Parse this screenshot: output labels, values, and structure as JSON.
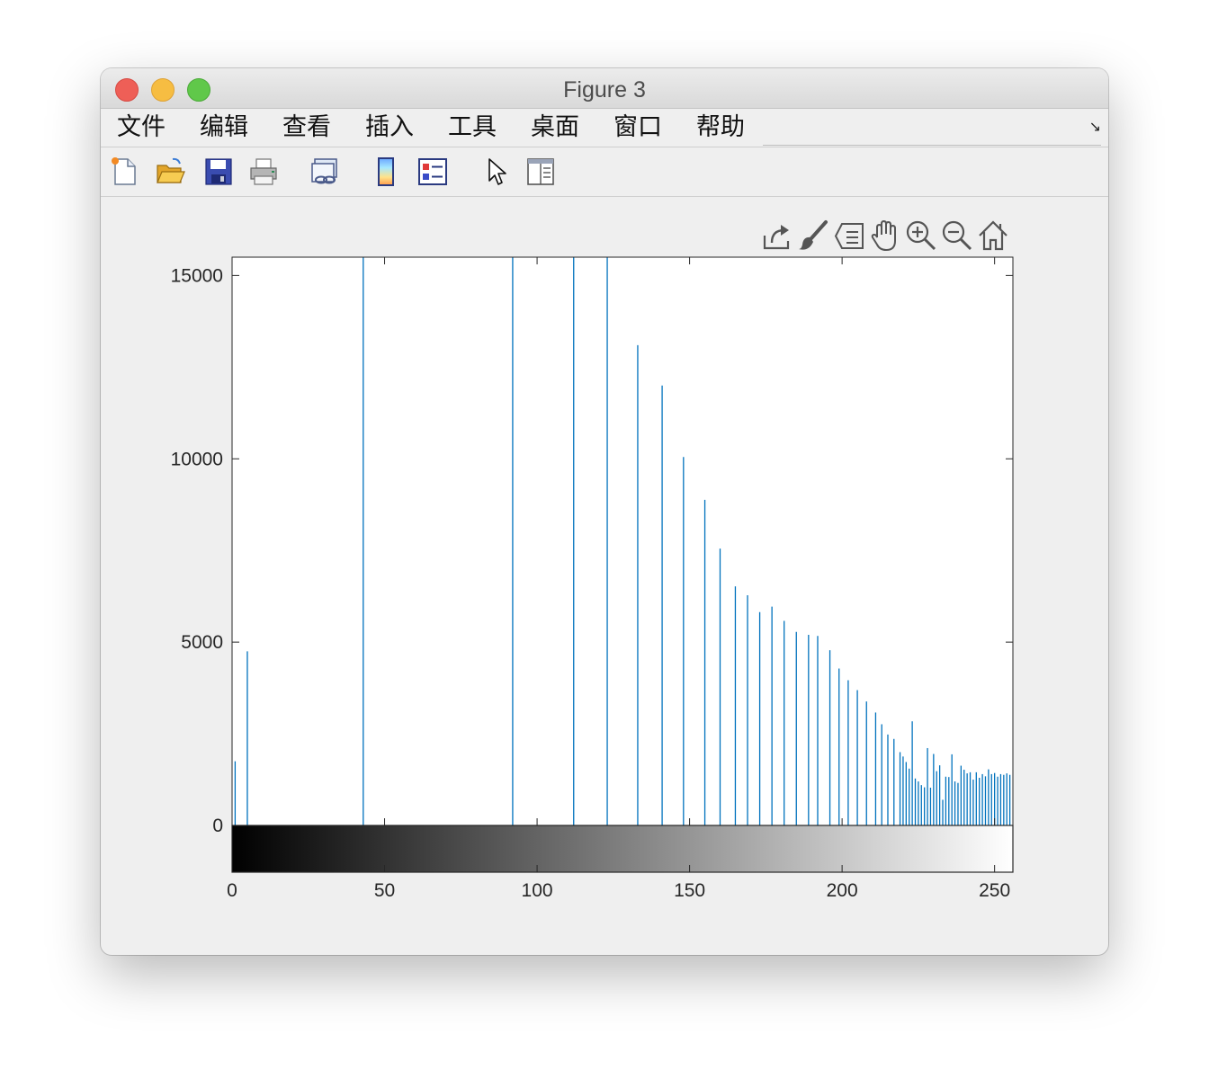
{
  "window": {
    "title": "Figure 3"
  },
  "menu": [
    "文件",
    "编辑",
    "查看",
    "插入",
    "工具",
    "桌面",
    "窗口",
    "帮助"
  ],
  "toolbar": {
    "buttons": [
      "new-figure-icon",
      "open-file-icon",
      "save-icon",
      "print-icon",
      "link-plot-icon",
      "colorbar-icon",
      "legend-icon",
      "pointer-icon",
      "property-inspector-icon"
    ]
  },
  "plot_toolbar": {
    "buttons": [
      "export-icon",
      "brush-icon",
      "datatip-icon",
      "pan-hand-icon",
      "zoom-in-icon",
      "zoom-out-icon",
      "home-icon"
    ]
  },
  "colors": {
    "stem": "#0072BD",
    "window_bg": "#efefef"
  },
  "chart_data": {
    "type": "bar",
    "title": "",
    "xlabel": "",
    "ylabel": "",
    "xlim": [
      0,
      256
    ],
    "ylim": [
      0,
      15500
    ],
    "x_ticks": [
      "0",
      "50",
      "100",
      "150",
      "200",
      "250"
    ],
    "y_ticks": [
      "0",
      "5000",
      "10000",
      "15000"
    ],
    "colorbar": {
      "type": "gray",
      "range": [
        0,
        255
      ]
    },
    "series": [
      {
        "x": [
          1,
          5,
          43,
          92,
          112,
          123,
          133,
          141,
          148,
          155,
          160,
          165,
          169,
          173,
          177,
          181,
          185,
          189,
          192,
          196,
          199,
          202,
          205,
          208,
          211,
          213,
          215,
          217,
          219,
          220,
          221,
          222,
          223,
          224,
          225,
          226,
          227,
          228,
          229,
          230,
          231,
          232,
          233,
          234,
          235,
          236,
          237,
          238,
          239,
          240,
          241,
          242,
          243,
          244,
          245,
          246,
          247,
          248,
          249,
          250,
          251,
          252,
          253,
          254,
          255
        ],
        "y": [
          1750,
          4750,
          15500,
          15500,
          15500,
          15500,
          13100,
          12000,
          10050,
          8880,
          7550,
          6520,
          6280,
          5820,
          5970,
          5580,
          5280,
          5200,
          5170,
          4780,
          4280,
          3960,
          3690,
          3380,
          3080,
          2760,
          2480,
          2360,
          2000,
          1880,
          1730,
          1550,
          2840,
          1280,
          1200,
          1100,
          1040,
          2110,
          1030,
          1950,
          1480,
          1640,
          700,
          1330,
          1320,
          1940,
          1200,
          1160,
          1630,
          1520,
          1420,
          1450,
          1250,
          1450,
          1300,
          1400,
          1340,
          1530,
          1400,
          1430,
          1330,
          1400,
          1380,
          1420,
          1380
        ]
      }
    ]
  }
}
